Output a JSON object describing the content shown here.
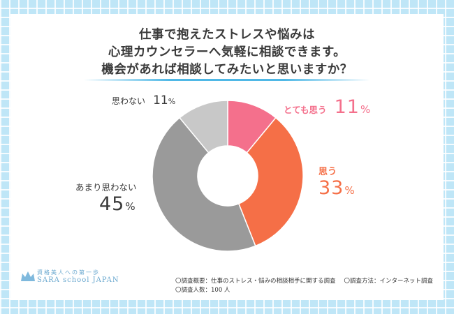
{
  "title": {
    "line1": "仕事で抱えたストレスや悩みは",
    "line2": "心理カウンセラーへ気軽に相談できます。",
    "line3": "機会があれば相談してみたいと思いますか？"
  },
  "chart_data": {
    "type": "pie",
    "style": "donut",
    "slices": [
      {
        "label": "とても思う",
        "value": 11,
        "color": "#f4708c"
      },
      {
        "label": "思う",
        "value": 33,
        "color": "#f56f47"
      },
      {
        "label": "あまり思わない",
        "value": 45,
        "color": "#9a9a9a"
      },
      {
        "label": "思わない",
        "value": 11,
        "color": "#c8c8c8"
      }
    ],
    "unit": "%"
  },
  "labels": {
    "s0": {
      "name": "とても思う",
      "num": "11",
      "pct": "%"
    },
    "s1": {
      "name": "思う",
      "num": "33",
      "pct": "%"
    },
    "s2": {
      "name": "あまり思わない",
      "num": "45",
      "pct": "%"
    },
    "s3": {
      "name": "思わない",
      "num": "11",
      "pct": "%"
    }
  },
  "logo": {
    "top": "資格美人への第一歩",
    "bottom": "SARA school JAPAN"
  },
  "notes": {
    "summary": "〇調査概要：仕事のストレス・悩みの相談相手に関する調査",
    "method": "〇調査方法：インターネット調査",
    "count": "〇調査人数：100 人"
  },
  "colors": {
    "accent": "#4fb8e6",
    "pink": "#f4708c",
    "orange": "#f56f47",
    "dark_gray": "#9a9a9a",
    "light_gray": "#c8c8c8"
  }
}
